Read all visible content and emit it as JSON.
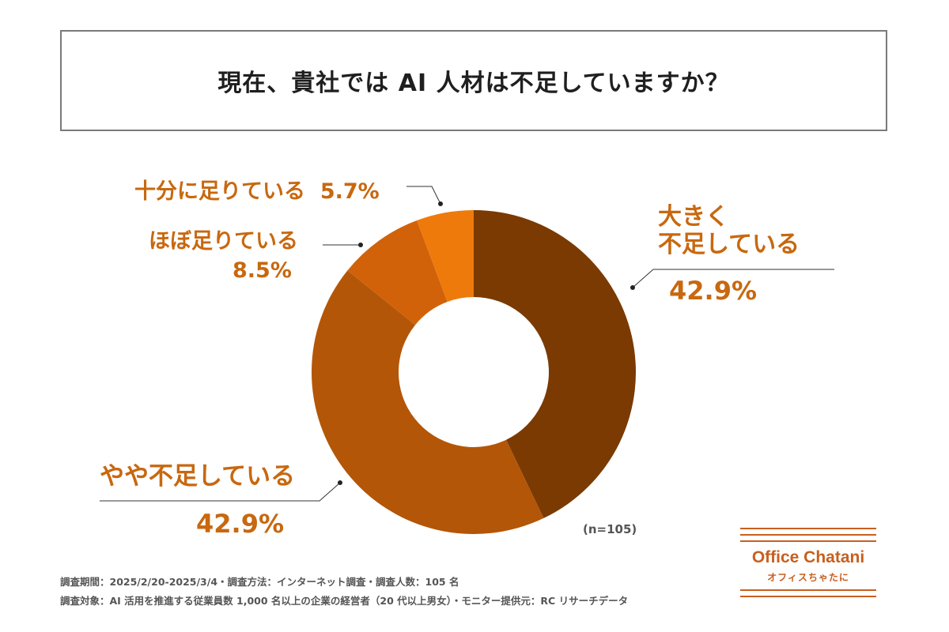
{
  "title": "現在、貴社では AI 人材は不足していますか？",
  "chart_data": {
    "type": "pie",
    "variant": "donut",
    "series": [
      {
        "name": "大きく不足している",
        "label_lines": [
          "大きく",
          "不足している"
        ],
        "value": 42.9,
        "value_label": "42.9%",
        "color": "#7a3a02"
      },
      {
        "name": "やや不足している",
        "label_lines": [
          "やや不足している"
        ],
        "value": 42.9,
        "value_label": "42.9%",
        "color": "#b45607"
      },
      {
        "name": "ほぼ足りている",
        "label_lines": [
          "ほぼ足りている"
        ],
        "value": 8.5,
        "value_label": "8.5%",
        "color": "#d16209"
      },
      {
        "name": "十分に足りている",
        "label_lines": [
          "十分に足りている"
        ],
        "value": 5.7,
        "value_label": "5.7%",
        "color": "#ef7a0c"
      }
    ],
    "label_color": "#c8680f",
    "n_note": "(n=105)"
  },
  "footnotes": [
    "調査期間：2025/2/20-2025/3/4・調査方法：インターネット調査・調査人数：105 名",
    "調査対象：AI 活用を推進する従業員数 1,000 名以上の企業の経営者（20 代以上男女）・モニター提供元：RC リサーチデータ"
  ],
  "logo": {
    "name": "Office Chatani",
    "kana": "オフィスちゃたに",
    "color": "#c85f1e"
  }
}
